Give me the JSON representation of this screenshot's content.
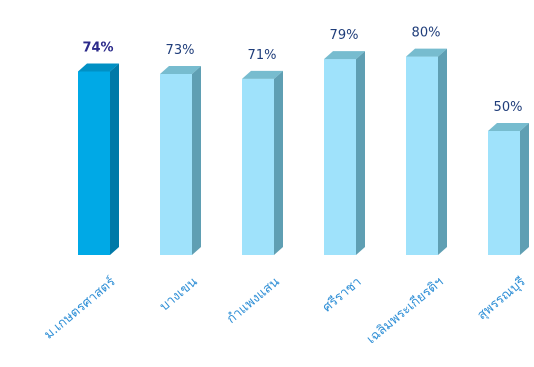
{
  "chart_data": {
    "type": "bar",
    "title": "",
    "xlabel": "",
    "ylabel": "",
    "unit": "%",
    "categories": [
      "ม.เกษตรศาสตร์",
      "บางเขน",
      "กำแพงแสน",
      "ศรีราชา",
      "เฉลิมพระเกียรติฯ",
      "สุพรรณบุรี"
    ],
    "values": [
      74,
      73,
      71,
      79,
      80,
      50
    ],
    "value_labels": [
      "74%",
      "73%",
      "71%",
      "79%",
      "80%",
      "50%"
    ],
    "highlight_index": 0,
    "ylim": [
      0,
      100
    ],
    "grid": false,
    "legend": "none",
    "colors": {
      "highlight_front": "#00a9e6",
      "highlight_side": "#0079a8",
      "highlight_top": "#0090c4",
      "highlight_label": "#2b2a8a",
      "bar_front": "#9fe2fb",
      "bar_side": "#5f9fb3",
      "bar_top": "#77bccf",
      "value_label": "#1f3d7a",
      "category_label": "#2f8fd6"
    }
  }
}
